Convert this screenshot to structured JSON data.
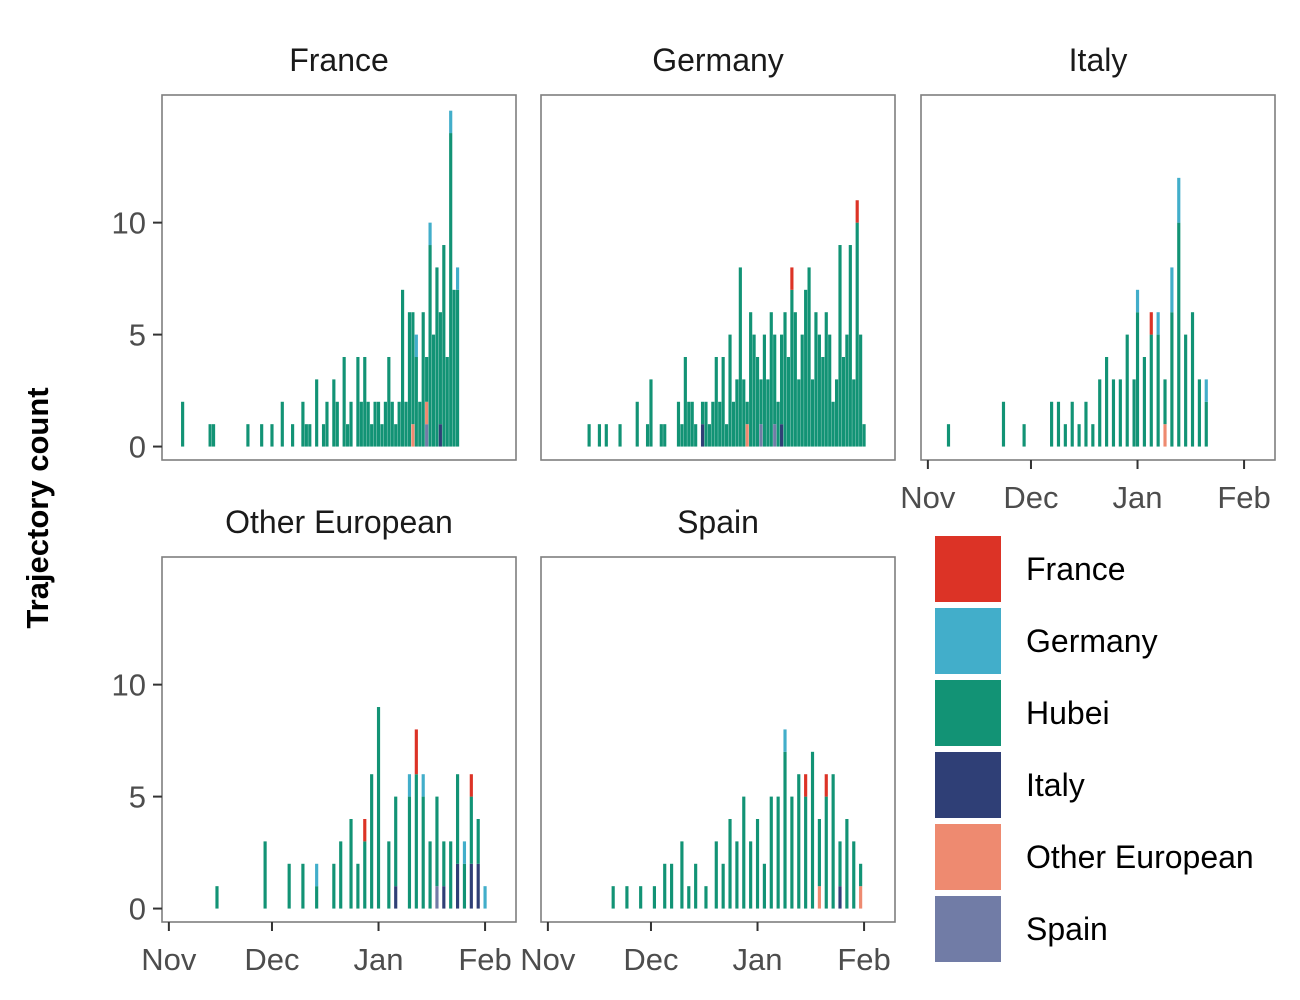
{
  "chart_data": {
    "type": "bar",
    "title": "",
    "xlabel": "",
    "ylabel": "Trajectory count",
    "ylim": [
      0,
      15
    ],
    "y_ticks": [
      {
        "value": 0,
        "label": "0"
      },
      {
        "value": 5,
        "label": "5"
      },
      {
        "value": 10,
        "label": "10"
      }
    ],
    "x_ticks": [
      {
        "label": "Nov",
        "date": "2019-11-01"
      },
      {
        "label": "Dec",
        "date": "2019-12-01"
      },
      {
        "label": "Jan",
        "date": "2020-01-01"
      },
      {
        "label": "Feb",
        "date": "2020-02-01"
      }
    ],
    "x_range": [
      "2019-10-30",
      "2020-02-10"
    ],
    "grid": false,
    "legend_position": "right",
    "series": [
      {
        "name": "France",
        "color": "#DC3326"
      },
      {
        "name": "Germany",
        "color": "#42AECA"
      },
      {
        "name": "Hubei",
        "color": "#129375"
      },
      {
        "name": "Italy",
        "color": "#2F3F76"
      },
      {
        "name": "Other European",
        "color": "#EE8A70"
      },
      {
        "name": "Spain",
        "color": "#717CA6"
      }
    ],
    "facets": [
      {
        "title": "France",
        "bars": [
          {
            "date": "2019-11-05",
            "Hubei": 2
          },
          {
            "date": "2019-11-13",
            "Hubei": 1
          },
          {
            "date": "2019-11-14",
            "Hubei": 1
          },
          {
            "date": "2019-11-24",
            "Hubei": 1
          },
          {
            "date": "2019-11-28",
            "Hubei": 1
          },
          {
            "date": "2019-12-01",
            "Hubei": 1
          },
          {
            "date": "2019-12-04",
            "Hubei": 2
          },
          {
            "date": "2019-12-07",
            "Hubei": 1
          },
          {
            "date": "2019-12-10",
            "Hubei": 2
          },
          {
            "date": "2019-12-11",
            "Hubei": 1
          },
          {
            "date": "2019-12-12",
            "Hubei": 1
          },
          {
            "date": "2019-12-14",
            "Hubei": 3
          },
          {
            "date": "2019-12-16",
            "Hubei": 1
          },
          {
            "date": "2019-12-17",
            "Hubei": 2
          },
          {
            "date": "2019-12-19",
            "Hubei": 3
          },
          {
            "date": "2019-12-20",
            "Hubei": 2
          },
          {
            "date": "2019-12-22",
            "Hubei": 4
          },
          {
            "date": "2019-12-23",
            "Hubei": 1
          },
          {
            "date": "2019-12-24",
            "Hubei": 2
          },
          {
            "date": "2019-12-26",
            "Hubei": 4
          },
          {
            "date": "2019-12-27",
            "Hubei": 2
          },
          {
            "date": "2019-12-28",
            "Hubei": 4
          },
          {
            "date": "2019-12-29",
            "Hubei": 2
          },
          {
            "date": "2019-12-30",
            "Hubei": 1
          },
          {
            "date": "2019-12-31",
            "Hubei": 2
          },
          {
            "date": "2020-01-01",
            "Hubei": 2
          },
          {
            "date": "2020-01-02",
            "Hubei": 1
          },
          {
            "date": "2020-01-03",
            "Hubei": 2
          },
          {
            "date": "2020-01-04",
            "Hubei": 4
          },
          {
            "date": "2020-01-05",
            "Hubei": 2
          },
          {
            "date": "2020-01-06",
            "Hubei": 1
          },
          {
            "date": "2020-01-07",
            "Hubei": 2
          },
          {
            "date": "2020-01-08",
            "Hubei": 7
          },
          {
            "date": "2020-01-09",
            "Hubei": 2
          },
          {
            "date": "2020-01-10",
            "Hubei": 6
          },
          {
            "date": "2020-01-11",
            "Hubei": 5,
            "Other European": 1
          },
          {
            "date": "2020-01-12",
            "Hubei": 4,
            "Germany": 1
          },
          {
            "date": "2020-01-13",
            "Hubei": 2
          },
          {
            "date": "2020-01-14",
            "Hubei": 6
          },
          {
            "date": "2020-01-15",
            "Hubei": 2,
            "Other European": 1,
            "Spain": 1
          },
          {
            "date": "2020-01-16",
            "Hubei": 9,
            "Germany": 1
          },
          {
            "date": "2020-01-17",
            "Hubei": 5
          },
          {
            "date": "2020-01-18",
            "Hubei": 8
          },
          {
            "date": "2020-01-19",
            "Hubei": 5,
            "Italy": 1
          },
          {
            "date": "2020-01-20",
            "Hubei": 9
          },
          {
            "date": "2020-01-21",
            "Hubei": 4
          },
          {
            "date": "2020-01-22",
            "Hubei": 14,
            "Germany": 1
          },
          {
            "date": "2020-01-23",
            "Hubei": 7
          },
          {
            "date": "2020-01-24",
            "Hubei": 7,
            "Germany": 1
          }
        ]
      },
      {
        "title": "Germany",
        "bars": [
          {
            "date": "2019-11-13",
            "Hubei": 1
          },
          {
            "date": "2019-11-16",
            "Hubei": 1
          },
          {
            "date": "2019-11-18",
            "Hubei": 1
          },
          {
            "date": "2019-11-22",
            "Hubei": 1
          },
          {
            "date": "2019-11-27",
            "Hubei": 2
          },
          {
            "date": "2019-11-30",
            "Hubei": 1
          },
          {
            "date": "2019-12-01",
            "Hubei": 3
          },
          {
            "date": "2019-12-04",
            "Hubei": 1
          },
          {
            "date": "2019-12-05",
            "Hubei": 1
          },
          {
            "date": "2019-12-09",
            "Hubei": 2
          },
          {
            "date": "2019-12-10",
            "Hubei": 1
          },
          {
            "date": "2019-12-11",
            "Hubei": 4
          },
          {
            "date": "2019-12-12",
            "Hubei": 2
          },
          {
            "date": "2019-12-13",
            "Hubei": 2
          },
          {
            "date": "2019-12-14",
            "Hubei": 1
          },
          {
            "date": "2019-12-16",
            "Hubei": 1,
            "Italy": 1
          },
          {
            "date": "2019-12-17",
            "Hubei": 2
          },
          {
            "date": "2019-12-18",
            "Hubei": 1
          },
          {
            "date": "2019-12-19",
            "Hubei": 2
          },
          {
            "date": "2019-12-20",
            "Hubei": 4
          },
          {
            "date": "2019-12-21",
            "Hubei": 2
          },
          {
            "date": "2019-12-22",
            "Hubei": 4
          },
          {
            "date": "2019-12-23",
            "Hubei": 1
          },
          {
            "date": "2019-12-24",
            "Hubei": 5
          },
          {
            "date": "2019-12-25",
            "Hubei": 2
          },
          {
            "date": "2019-12-26",
            "Hubei": 3
          },
          {
            "date": "2019-12-27",
            "Hubei": 8
          },
          {
            "date": "2019-12-28",
            "Hubei": 3
          },
          {
            "date": "2019-12-29",
            "Hubei": 1,
            "Other European": 1
          },
          {
            "date": "2019-12-30",
            "Hubei": 6
          },
          {
            "date": "2019-12-31",
            "Hubei": 5
          },
          {
            "date": "2020-01-01",
            "Hubei": 4
          },
          {
            "date": "2020-01-02",
            "Hubei": 2,
            "Spain": 1
          },
          {
            "date": "2020-01-03",
            "Hubei": 5
          },
          {
            "date": "2020-01-04",
            "Hubei": 3
          },
          {
            "date": "2020-01-05",
            "Hubei": 6
          },
          {
            "date": "2020-01-06",
            "Hubei": 4,
            "Spain": 1
          },
          {
            "date": "2020-01-07",
            "Hubei": 2
          },
          {
            "date": "2020-01-08",
            "Hubei": 4,
            "Italy": 1
          },
          {
            "date": "2020-01-09",
            "Hubei": 6
          },
          {
            "date": "2020-01-10",
            "Hubei": 4
          },
          {
            "date": "2020-01-11",
            "Hubei": 7,
            "France": 1
          },
          {
            "date": "2020-01-12",
            "Hubei": 6
          },
          {
            "date": "2020-01-13",
            "Hubei": 3
          },
          {
            "date": "2020-01-14",
            "Hubei": 5
          },
          {
            "date": "2020-01-15",
            "Hubei": 7
          },
          {
            "date": "2020-01-16",
            "Hubei": 8
          },
          {
            "date": "2020-01-17",
            "Hubei": 3
          },
          {
            "date": "2020-01-18",
            "Hubei": 6
          },
          {
            "date": "2020-01-19",
            "Hubei": 5
          },
          {
            "date": "2020-01-20",
            "Hubei": 4
          },
          {
            "date": "2020-01-21",
            "Hubei": 6
          },
          {
            "date": "2020-01-22",
            "Hubei": 5
          },
          {
            "date": "2020-01-23",
            "Hubei": 2
          },
          {
            "date": "2020-01-24",
            "Hubei": 3
          },
          {
            "date": "2020-01-25",
            "Hubei": 9
          },
          {
            "date": "2020-01-26",
            "Hubei": 4
          },
          {
            "date": "2020-01-27",
            "Hubei": 5
          },
          {
            "date": "2020-01-28",
            "Hubei": 9
          },
          {
            "date": "2020-01-29",
            "Hubei": 3
          },
          {
            "date": "2020-01-30",
            "Hubei": 10,
            "France": 1
          },
          {
            "date": "2020-01-31",
            "Hubei": 5
          },
          {
            "date": "2020-02-01",
            "Hubei": 1
          }
        ]
      },
      {
        "title": "Italy",
        "bars": [
          {
            "date": "2019-11-07",
            "Hubei": 1
          },
          {
            "date": "2019-11-23",
            "Hubei": 2
          },
          {
            "date": "2019-11-29",
            "Hubei": 1
          },
          {
            "date": "2019-12-07",
            "Hubei": 2
          },
          {
            "date": "2019-12-09",
            "Hubei": 2
          },
          {
            "date": "2019-12-11",
            "Hubei": 1
          },
          {
            "date": "2019-12-13",
            "Hubei": 2
          },
          {
            "date": "2019-12-15",
            "Hubei": 1
          },
          {
            "date": "2019-12-17",
            "Hubei": 2
          },
          {
            "date": "2019-12-19",
            "Hubei": 1
          },
          {
            "date": "2019-12-21",
            "Hubei": 3
          },
          {
            "date": "2019-12-23",
            "Hubei": 4
          },
          {
            "date": "2019-12-25",
            "Hubei": 3
          },
          {
            "date": "2019-12-27",
            "Hubei": 3
          },
          {
            "date": "2019-12-29",
            "Hubei": 5
          },
          {
            "date": "2019-12-31",
            "Hubei": 3
          },
          {
            "date": "2020-01-01",
            "Hubei": 6,
            "Germany": 1
          },
          {
            "date": "2020-01-03",
            "Hubei": 4
          },
          {
            "date": "2020-01-05",
            "Hubei": 5,
            "France": 1
          },
          {
            "date": "2020-01-07",
            "Hubei": 5,
            "Germany": 1
          },
          {
            "date": "2020-01-09",
            "Hubei": 2,
            "Other European": 1
          },
          {
            "date": "2020-01-11",
            "Hubei": 6,
            "Germany": 2
          },
          {
            "date": "2020-01-13",
            "Hubei": 10,
            "Germany": 2
          },
          {
            "date": "2020-01-15",
            "Hubei": 5
          },
          {
            "date": "2020-01-17",
            "Hubei": 6
          },
          {
            "date": "2020-01-19",
            "Hubei": 3
          },
          {
            "date": "2020-01-21",
            "Hubei": 2,
            "Germany": 1
          }
        ]
      },
      {
        "title": "Other European",
        "bars": [
          {
            "date": "2019-11-15",
            "Hubei": 1
          },
          {
            "date": "2019-11-29",
            "Hubei": 3
          },
          {
            "date": "2019-12-06",
            "Hubei": 2
          },
          {
            "date": "2019-12-10",
            "Hubei": 2
          },
          {
            "date": "2019-12-14",
            "Hubei": 1,
            "Germany": 1
          },
          {
            "date": "2019-12-19",
            "Hubei": 2
          },
          {
            "date": "2019-12-21",
            "Hubei": 3
          },
          {
            "date": "2019-12-24",
            "Hubei": 4
          },
          {
            "date": "2019-12-26",
            "Hubei": 2
          },
          {
            "date": "2019-12-28",
            "Hubei": 3,
            "France": 1
          },
          {
            "date": "2019-12-30",
            "Hubei": 6
          },
          {
            "date": "2020-01-01",
            "Hubei": 9
          },
          {
            "date": "2020-01-04",
            "Hubei": 3
          },
          {
            "date": "2020-01-06",
            "Hubei": 4,
            "Italy": 1
          },
          {
            "date": "2020-01-10",
            "Hubei": 5,
            "Germany": 1
          },
          {
            "date": "2020-01-12",
            "Hubei": 6,
            "France": 2
          },
          {
            "date": "2020-01-14",
            "Hubei": 5,
            "Germany": 1
          },
          {
            "date": "2020-01-16",
            "Hubei": 3
          },
          {
            "date": "2020-01-18",
            "Hubei": 4,
            "Spain": 1
          },
          {
            "date": "2020-01-20",
            "Hubei": 2,
            "Italy": 1
          },
          {
            "date": "2020-01-22",
            "Hubei": 3
          },
          {
            "date": "2020-01-24",
            "Hubei": 4,
            "Italy": 2
          },
          {
            "date": "2020-01-26",
            "Hubei": 2,
            "Germany": 1
          },
          {
            "date": "2020-01-28",
            "Hubei": 3,
            "Italy": 2,
            "France": 1
          },
          {
            "date": "2020-01-30",
            "Hubei": 2,
            "Italy": 2
          },
          {
            "date": "2020-02-01",
            "Germany": 1
          }
        ]
      },
      {
        "title": "Spain",
        "bars": [
          {
            "date": "2019-11-20",
            "Hubei": 1
          },
          {
            "date": "2019-11-24",
            "Hubei": 1
          },
          {
            "date": "2019-11-28",
            "Hubei": 1
          },
          {
            "date": "2019-12-02",
            "Hubei": 1
          },
          {
            "date": "2019-12-05",
            "Hubei": 2
          },
          {
            "date": "2019-12-07",
            "Hubei": 2
          },
          {
            "date": "2019-12-10",
            "Hubei": 3
          },
          {
            "date": "2019-12-12",
            "Hubei": 1
          },
          {
            "date": "2019-12-14",
            "Hubei": 2
          },
          {
            "date": "2019-12-17",
            "Hubei": 1
          },
          {
            "date": "2019-12-20",
            "Hubei": 3
          },
          {
            "date": "2019-12-22",
            "Hubei": 2
          },
          {
            "date": "2019-12-24",
            "Hubei": 4
          },
          {
            "date": "2019-12-26",
            "Hubei": 3
          },
          {
            "date": "2019-12-28",
            "Hubei": 5
          },
          {
            "date": "2019-12-30",
            "Hubei": 3
          },
          {
            "date": "2020-01-01",
            "Hubei": 4
          },
          {
            "date": "2020-01-03",
            "Hubei": 2
          },
          {
            "date": "2020-01-05",
            "Hubei": 5
          },
          {
            "date": "2020-01-07",
            "Hubei": 5
          },
          {
            "date": "2020-01-09",
            "Hubei": 7,
            "Germany": 1
          },
          {
            "date": "2020-01-11",
            "Hubei": 5
          },
          {
            "date": "2020-01-13",
            "Hubei": 6
          },
          {
            "date": "2020-01-15",
            "Hubei": 5,
            "France": 1
          },
          {
            "date": "2020-01-17",
            "Hubei": 7
          },
          {
            "date": "2020-01-19",
            "Hubei": 3,
            "Other European": 1
          },
          {
            "date": "2020-01-21",
            "Hubei": 5,
            "France": 1
          },
          {
            "date": "2020-01-23",
            "Hubei": 6
          },
          {
            "date": "2020-01-25",
            "Hubei": 2,
            "Italy": 1
          },
          {
            "date": "2020-01-27",
            "Hubei": 4
          },
          {
            "date": "2020-01-29",
            "Hubei": 3
          },
          {
            "date": "2020-01-31",
            "Hubei": 1,
            "Other European": 1
          }
        ]
      }
    ]
  }
}
